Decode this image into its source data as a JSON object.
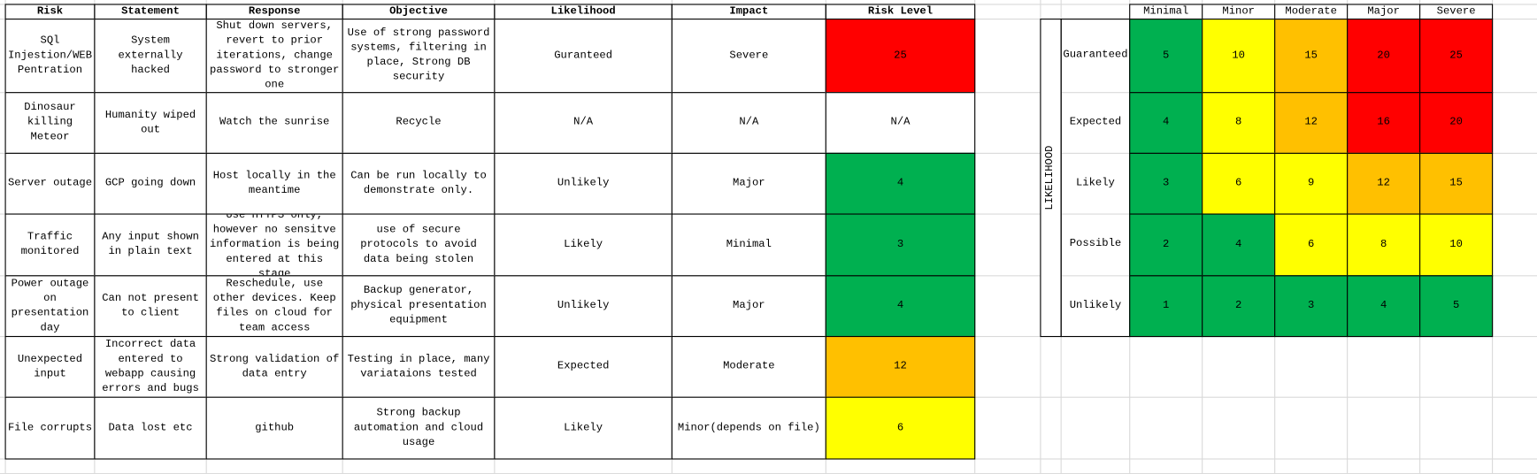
{
  "table": {
    "headers": [
      "Risk",
      "Statement",
      "Response",
      "Objective",
      "Likelihood",
      "Impact",
      "Risk Level"
    ],
    "rows": [
      [
        "SQl Injestion/WEB Pentration",
        "System externally hacked",
        "Shut down servers, revert to prior iterations, change password to stronger one",
        "Use of strong password systems, filtering in place, Strong DB security",
        "Guranteed",
        "Severe",
        25
      ],
      [
        "Dinosaur killing Meteor",
        "Humanity wiped out",
        "Watch the sunrise",
        "Recycle",
        "N/A",
        "N/A",
        "N/A"
      ],
      [
        "Server outage",
        "GCP going down",
        "Host locally in the meantime",
        "Can be run locally to demonstrate only.",
        "Unlikely",
        "Major",
        4
      ],
      [
        "Traffic monitored",
        "Any input shown in plain text",
        "Use HTTPS only, however no sensitve information is being entered at this stage",
        "use of secure protocols to avoid data being stolen",
        "Likely",
        "Minimal",
        3
      ],
      [
        "Power outage on presentation day",
        "Can not present to client",
        "Reschedule, use other devices. Keep files on cloud for team access",
        "Backup generator, physical presentation equipment",
        "Unlikely",
        "Major",
        4
      ],
      [
        "Unexpected input",
        "Incorrect data entered to webapp causing errors and bugs",
        "Strong validation of data entry",
        "Testing in place, many variataions tested",
        "Expected",
        "Moderate",
        12
      ],
      [
        "File corrupts",
        "Data lost etc",
        "github",
        "Strong backup automation and cloud usage",
        "Likely",
        "Minor(depends on file)",
        6
      ]
    ],
    "level_fills": [
      "#ff0000",
      "#ffffff",
      "#00b050",
      "#00b050",
      "#00b050",
      "#ffc000",
      "#ffff00"
    ]
  },
  "matrix": {
    "axis_label": "LIKELIHOOD",
    "columns": [
      "Minimal",
      "Minor",
      "Moderate",
      "Major",
      "Severe"
    ],
    "rows": [
      {
        "label": "Guaranteed",
        "cells": [
          5,
          10,
          15,
          20,
          25
        ],
        "fills": [
          "#00b050",
          "#ffff00",
          "#ffc000",
          "#ff0000",
          "#ff0000"
        ]
      },
      {
        "label": "Expected",
        "cells": [
          4,
          8,
          12,
          16,
          20
        ],
        "fills": [
          "#00b050",
          "#ffff00",
          "#ffc000",
          "#ff0000",
          "#ff0000"
        ]
      },
      {
        "label": "Likely",
        "cells": [
          3,
          6,
          9,
          12,
          15
        ],
        "fills": [
          "#00b050",
          "#ffff00",
          "#ffff00",
          "#ffc000",
          "#ffc000"
        ]
      },
      {
        "label": "Possible",
        "cells": [
          2,
          4,
          6,
          8,
          10
        ],
        "fills": [
          "#00b050",
          "#00b050",
          "#ffff00",
          "#ffff00",
          "#ffff00"
        ]
      },
      {
        "label": "Unlikely",
        "cells": [
          1,
          2,
          3,
          4,
          5
        ],
        "fills": [
          "#00b050",
          "#00b050",
          "#00b050",
          "#00b050",
          "#00b050"
        ]
      }
    ]
  }
}
